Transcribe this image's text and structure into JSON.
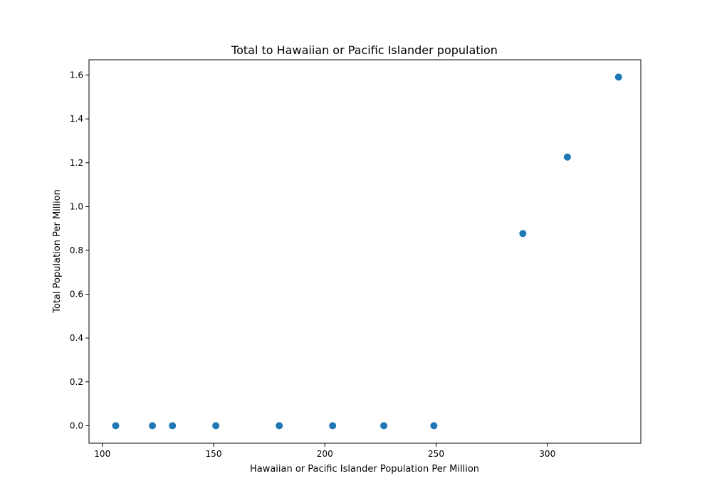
{
  "chart_data": {
    "type": "scatter",
    "title": "Total to Hawaiian or Pacific Islander population",
    "xlabel": "Hawaiian or Pacific Islander Population Per Million",
    "ylabel": "Total Population Per Million",
    "xlim": [
      94,
      342
    ],
    "ylim": [
      -0.08,
      1.67
    ],
    "xticks": [
      100,
      150,
      200,
      250,
      300
    ],
    "xtick_labels": [
      "100",
      "150",
      "200",
      "250",
      "300"
    ],
    "yticks": [
      0.0,
      0.2,
      0.4,
      0.6,
      0.8,
      1.0,
      1.2,
      1.4,
      1.6
    ],
    "ytick_labels": [
      "0.0",
      "0.2",
      "0.4",
      "0.6",
      "0.8",
      "1.0",
      "1.2",
      "1.4",
      "1.6"
    ],
    "grid": false,
    "marker_color": "#1f77b4",
    "points": [
      {
        "x": 106,
        "y": 0.0
      },
      {
        "x": 122.5,
        "y": 0.0
      },
      {
        "x": 131.5,
        "y": 0.0
      },
      {
        "x": 151,
        "y": 0.0
      },
      {
        "x": 179.5,
        "y": 0.0
      },
      {
        "x": 203.5,
        "y": 0.0
      },
      {
        "x": 226.5,
        "y": 0.0
      },
      {
        "x": 249,
        "y": 0.0
      },
      {
        "x": 289,
        "y": 0.877
      },
      {
        "x": 309,
        "y": 1.226
      },
      {
        "x": 332,
        "y": 1.591
      }
    ]
  }
}
